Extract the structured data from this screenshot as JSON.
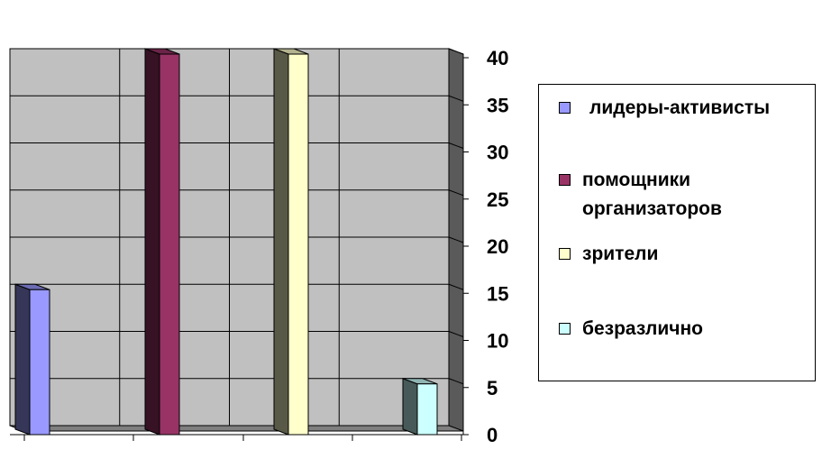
{
  "chart_data": {
    "type": "bar",
    "title": "",
    "xlabel": "",
    "ylabel": "",
    "ylim": [
      0,
      40
    ],
    "yticks": [
      0,
      5,
      10,
      15,
      20,
      25,
      30,
      35,
      40
    ],
    "grid": true,
    "legend_position": "right",
    "three_d": true,
    "series": [
      {
        "name": "лидеры-активисты",
        "values": [
          15
        ],
        "color": "#9999ff"
      },
      {
        "name": "помощники организаторов",
        "values": [
          40
        ],
        "color": "#993366"
      },
      {
        "name": "зрители",
        "values": [
          40
        ],
        "color": "#ffffcc"
      },
      {
        "name": "безразлично",
        "values": [
          5
        ],
        "color": "#ccffff"
      }
    ],
    "legend": [
      {
        "label": "лидеры-активисты",
        "lines": [
          "лидеры-активисты"
        ],
        "color": "#9999ff"
      },
      {
        "label": "помощники организаторов",
        "lines": [
          "помощники",
          "организаторов"
        ],
        "color": "#993366"
      },
      {
        "label": "зрители",
        "lines": [
          "зрители"
        ],
        "color": "#ffffcc"
      },
      {
        "label": "безразлично",
        "lines": [
          "безразлично"
        ],
        "color": "#ccffff"
      }
    ],
    "plot_background": "#c0c0c0"
  }
}
